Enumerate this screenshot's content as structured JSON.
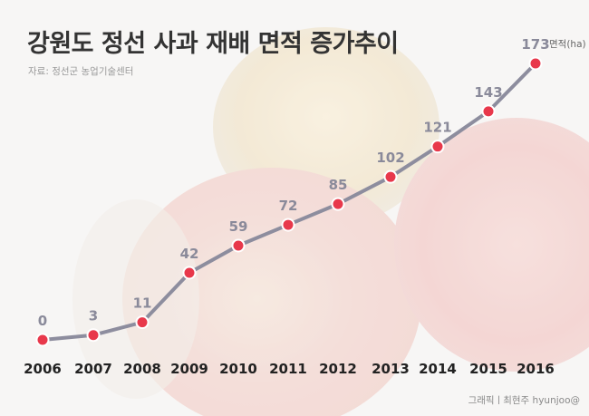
{
  "title": "강원도 정선 사과 재배 면적 증가추이",
  "source": "자료: 정선군 농업기술센터",
  "credit": "그래픽ㅣ최현주 hyunjoo@",
  "colors": {
    "line": "#8d8d9e",
    "point": "#e8384b",
    "point_stroke": "#ffffff",
    "value_label": "#8a8a9a",
    "year_label": "#222222"
  },
  "chart_data": {
    "type": "line",
    "title": "강원도 정선 사과 재배 면적 증가추이",
    "unit_label": "면적(ha)",
    "x": [
      "2006",
      "2007",
      "2008",
      "2009",
      "2010",
      "2011",
      "2012",
      "2013",
      "2014",
      "2015",
      "2016"
    ],
    "series": [
      {
        "values": [
          0,
          3,
          11,
          42,
          59,
          72,
          85,
          102,
          121,
          143,
          173
        ]
      }
    ],
    "ylim": [
      0,
      173
    ],
    "grid": false,
    "data_labels": true
  }
}
